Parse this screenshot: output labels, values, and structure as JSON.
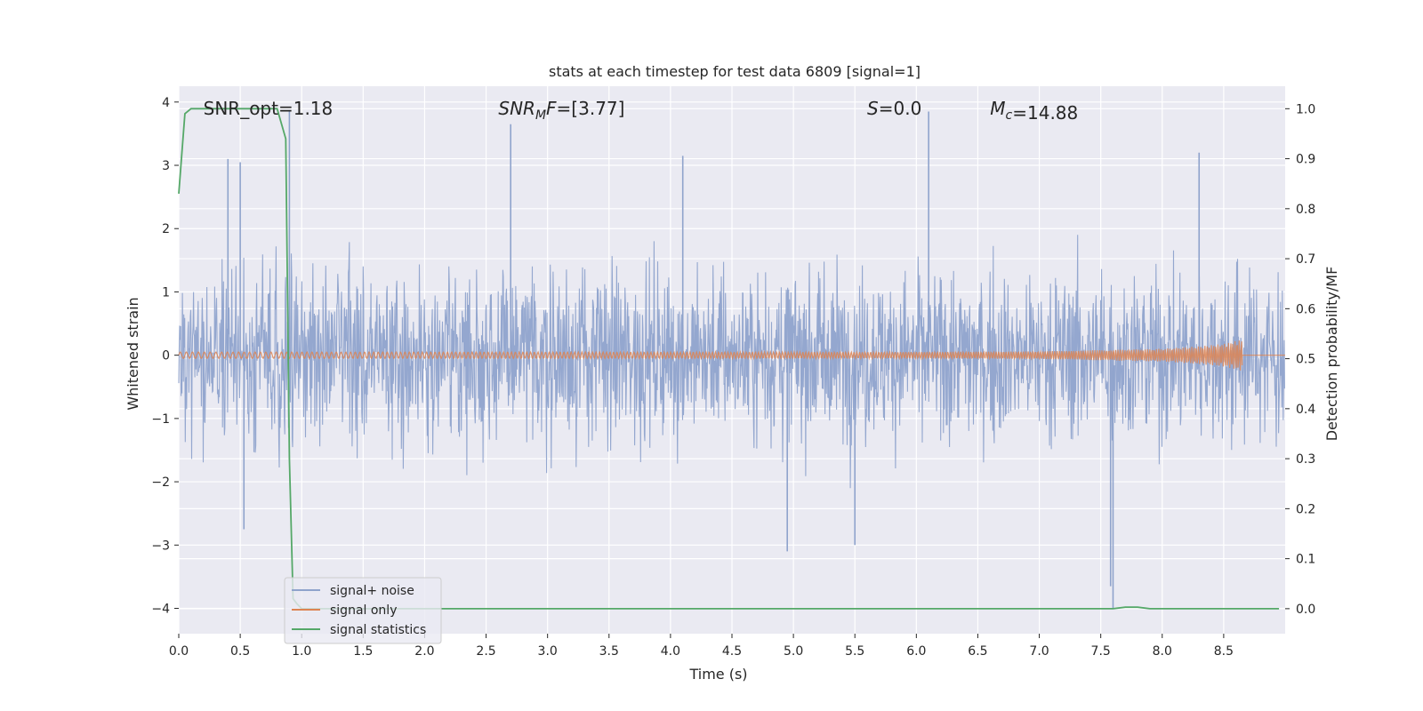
{
  "chart_data": {
    "type": "line",
    "title": "stats at each timestep for test data 6809 [signal=1]",
    "xlabel": "Time (s)",
    "ylabel": "Whitened strain",
    "ylabel_right": "Detection probability/MF",
    "xlim": [
      0,
      9.0
    ],
    "ylim": [
      -4.4,
      4.25
    ],
    "ylim_right": [
      -0.05,
      1.045
    ],
    "x_ticks": [
      0.0,
      0.5,
      1.0,
      1.5,
      2.0,
      2.5,
      3.0,
      3.5,
      4.0,
      4.5,
      5.0,
      5.5,
      6.0,
      6.5,
      7.0,
      7.5,
      8.0,
      8.5
    ],
    "x_tick_labels": [
      "0.0",
      "0.5",
      "1.0",
      "1.5",
      "2.0",
      "2.5",
      "3.0",
      "3.5",
      "4.0",
      "4.5",
      "5.0",
      "5.5",
      "6.0",
      "6.5",
      "7.0",
      "7.5",
      "8.0",
      "8.5"
    ],
    "y_ticks": [
      4,
      3,
      2,
      1,
      0,
      -1,
      -2,
      -3,
      -4
    ],
    "y_tick_labels": [
      "4",
      "3",
      "2",
      "1",
      "0",
      "−1",
      "−2",
      "−3",
      "−4"
    ],
    "y_right_ticks": [
      1.0,
      0.9,
      0.8,
      0.7,
      0.6,
      0.5,
      0.4,
      0.3,
      0.2,
      0.1,
      0.0
    ],
    "y_right_tick_labels": [
      "1.0",
      "0.9",
      "0.8",
      "0.7",
      "0.6",
      "0.5",
      "0.4",
      "0.3",
      "0.2",
      "0.1",
      "0.0"
    ],
    "grid": true,
    "legend_position": "lower-left",
    "annotations": [
      {
        "text": "SNR_opt=1.18",
        "x": 0.2,
        "y": 3.9
      },
      {
        "text": "SNR_MF=[3.77]",
        "x": 2.6,
        "y": 3.9,
        "math": true
      },
      {
        "text": "S=0.0",
        "x": 5.6,
        "y": 3.9,
        "math": true
      },
      {
        "text": "M_c=14.88",
        "x": 6.6,
        "y": 3.9,
        "math": true
      }
    ],
    "series": [
      {
        "name": "signal+ noise",
        "color": "#8fa3cc",
        "axis": "left",
        "noise_amplitude": 1.5,
        "peaks": [
          {
            "x": 0.4,
            "y": 3.1
          },
          {
            "x": 0.5,
            "y": 3.05
          },
          {
            "x": 0.9,
            "y": 3.85
          },
          {
            "x": 2.7,
            "y": 3.65
          },
          {
            "x": 4.1,
            "y": 3.15
          },
          {
            "x": 6.1,
            "y": 3.85
          },
          {
            "x": 8.3,
            "y": 3.2
          },
          {
            "x": 4.95,
            "y": -3.1
          },
          {
            "x": 7.58,
            "y": -3.65
          },
          {
            "x": 7.6,
            "y": -4.0
          },
          {
            "x": 5.5,
            "y": -3.0
          },
          {
            "x": 0.53,
            "y": -2.75
          }
        ]
      },
      {
        "name": "signal only",
        "color": "#dd8452",
        "axis": "left",
        "x": [
          0.0,
          1.0,
          2.0,
          3.0,
          4.0,
          5.0,
          6.0,
          7.0,
          7.5,
          8.0,
          8.3,
          8.5,
          8.65
        ],
        "amplitude": [
          0.05,
          0.05,
          0.05,
          0.05,
          0.05,
          0.05,
          0.05,
          0.06,
          0.08,
          0.1,
          0.14,
          0.18,
          0.25
        ]
      },
      {
        "name": "signal statistics",
        "color": "#55a868",
        "axis": "right",
        "x": [
          0.0,
          0.05,
          0.1,
          0.2,
          0.3,
          0.5,
          0.7,
          0.8,
          0.87,
          0.9,
          0.93,
          0.96,
          1.0,
          2.0,
          4.0,
          6.0,
          7.0,
          7.6,
          7.7,
          7.8,
          7.9,
          8.0,
          8.5,
          8.95
        ],
        "y": [
          0.83,
          0.99,
          1.0,
          1.0,
          1.0,
          1.0,
          1.0,
          1.0,
          0.94,
          0.3,
          0.02,
          0.01,
          0.0,
          0.0,
          0.0,
          0.0,
          0.0,
          0.0,
          0.003,
          0.003,
          0.0,
          0.0,
          0.0,
          0.0
        ]
      }
    ]
  }
}
